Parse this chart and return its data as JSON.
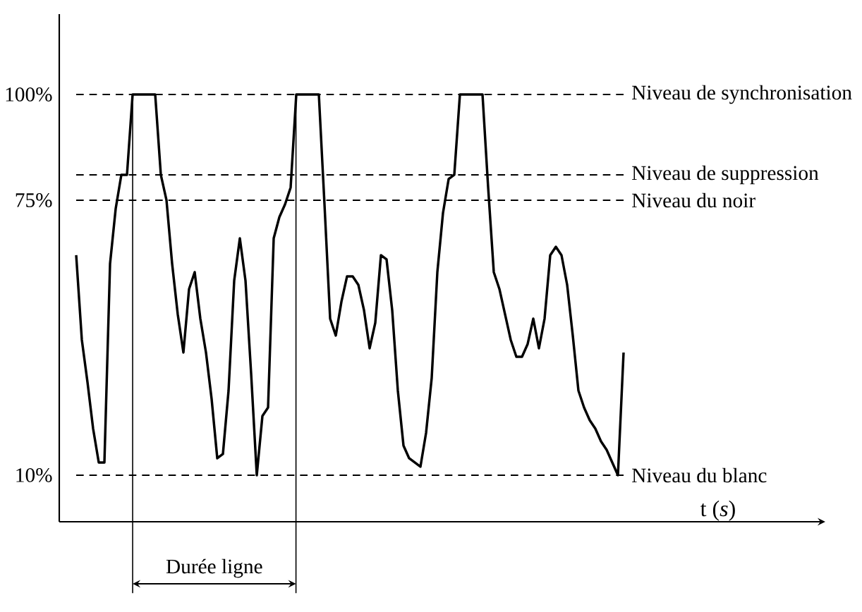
{
  "chart_data": {
    "type": "line",
    "xlabel": "t (*s*)",
    "ylim": [
      -1,
      119
    ],
    "yticks": [
      {
        "value": 10,
        "label": "10%"
      },
      {
        "value": 75,
        "label": "75%"
      },
      {
        "value": 100,
        "label": "100%"
      }
    ],
    "tick_labels": "y",
    "marker": "none",
    "line_style": "solid",
    "categories": [
      null,
      null,
      null,
      null,
      null,
      null,
      null,
      null,
      null,
      null,
      null,
      null,
      null,
      null,
      null,
      null,
      null,
      null,
      null,
      null,
      null,
      null,
      null,
      null,
      null,
      null,
      null,
      null,
      null,
      null,
      null,
      null,
      null,
      null,
      null,
      null,
      null,
      null,
      null,
      null,
      null,
      null,
      null,
      null,
      null,
      null,
      null,
      null,
      null,
      null,
      null,
      null,
      null,
      null,
      null,
      null,
      null,
      null,
      null,
      null,
      null,
      null,
      null,
      null,
      null,
      null,
      null,
      null,
      null,
      null,
      null,
      null,
      null,
      null,
      null,
      null,
      null,
      null,
      null,
      null,
      null,
      null,
      null,
      null,
      null,
      null,
      null,
      null,
      null,
      null,
      null,
      null,
      null,
      null,
      null,
      null,
      null,
      null
    ],
    "series": [
      {
        "color": "#000000",
        "values": [
          62,
          42,
          32,
          21,
          13,
          13,
          60,
          73,
          81,
          81,
          100,
          100,
          100,
          100,
          100,
          81,
          75,
          60,
          48,
          39,
          54,
          58,
          47,
          39,
          28,
          14,
          15,
          30,
          56,
          66,
          56,
          34,
          10,
          24,
          26,
          66,
          71,
          74,
          78,
          100,
          100,
          100,
          100,
          100,
          74,
          47,
          43,
          51,
          57,
          57,
          55,
          49,
          40,
          46,
          62,
          61,
          49,
          30,
          17,
          14,
          13,
          12,
          20,
          33,
          58,
          72,
          80,
          81,
          100,
          100,
          100,
          100,
          100,
          78,
          58,
          54,
          48,
          42,
          38,
          38,
          41,
          47,
          40,
          47,
          62,
          64,
          62,
          55,
          43,
          30,
          26,
          23,
          21,
          18,
          16,
          13,
          10,
          39
        ]
      }
    ],
    "ref_lines": [
      {
        "axis": "y",
        "value": 100,
        "label": "Niveau de synchronisation",
        "line_style": "dashed"
      },
      {
        "axis": "y",
        "value": 81,
        "label": "Niveau de suppression",
        "line_style": "dashed"
      },
      {
        "axis": "y",
        "value": 75,
        "label": "Niveau du noir",
        "line_style": "dashed"
      },
      {
        "axis": "y",
        "value": 10,
        "label": "Niveau du blanc",
        "line_style": "dashed"
      }
    ],
    "annotations": [
      "Durée ligne"
    ]
  }
}
